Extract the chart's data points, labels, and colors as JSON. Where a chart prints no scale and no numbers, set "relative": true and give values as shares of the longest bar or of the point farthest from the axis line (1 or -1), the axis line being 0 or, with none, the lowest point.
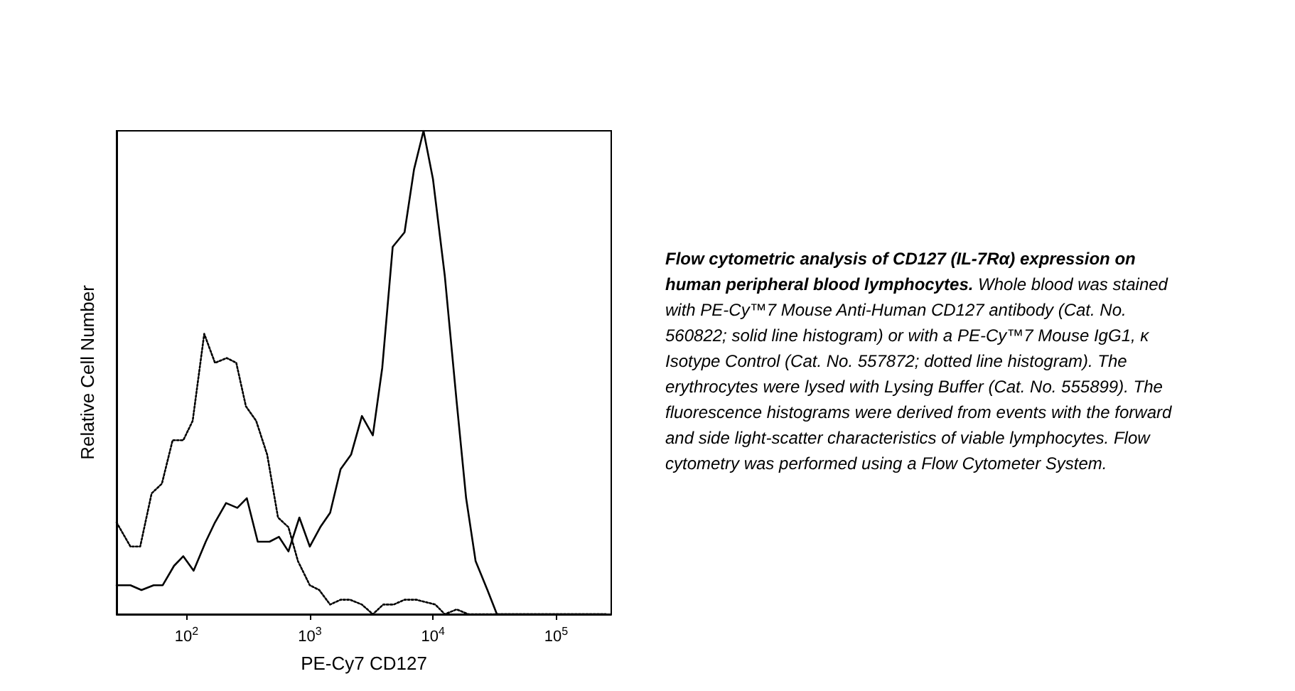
{
  "chart_data": {
    "type": "line",
    "xlabel": "PE-Cy7 CD127",
    "ylabel": "Relative Cell Number",
    "relative": true,
    "log": "x",
    "grid": false,
    "marker": "none",
    "xlim": [
      27,
      280000
    ],
    "xticks": [
      {
        "value": 100,
        "label": "10$^{2}$"
      },
      {
        "value": 1000,
        "label": "10$^{3}$"
      },
      {
        "value": 10000,
        "label": "10$^{4}$"
      },
      {
        "value": 100000,
        "label": "10$^{5}$"
      }
    ],
    "series": [
      {
        "color": "#000000",
        "line_style": "solid",
        "x": [
          27,
          35,
          43,
          54,
          64,
          79,
          94,
          114,
          143,
          170,
          209,
          258,
          308,
          378,
          471,
          562,
          671,
          823,
          1000,
          1216,
          1463,
          1778,
          2163,
          2649,
          3249,
          3875,
          4710,
          5878,
          7015,
          8380,
          10000,
          12470,
          15560,
          18580,
          22180,
          27680,
          33040,
          253500
        ],
        "values": [
          0.06,
          0.06,
          0.05,
          0.06,
          0.06,
          0.1,
          0.12,
          0.09,
          0.15,
          0.19,
          0.23,
          0.22,
          0.24,
          0.15,
          0.15,
          0.16,
          0.13,
          0.2,
          0.14,
          0.18,
          0.21,
          0.3,
          0.33,
          0.41,
          0.37,
          0.51,
          0.76,
          0.79,
          0.92,
          1.0,
          0.9,
          0.7,
          0.44,
          0.24,
          0.11,
          0.05,
          0,
          0
        ]
      },
      {
        "color": "#000000",
        "line_style": "dotted",
        "x": [
          27,
          35,
          42,
          52,
          63,
          77,
          94,
          112,
          139,
          170,
          212,
          253,
          303,
          367,
          451,
          552,
          671,
          801,
          1000,
          1194,
          1463,
          1778,
          2123,
          2649,
          3249,
          3945,
          4797,
          5878,
          7325,
          10450,
          12470,
          15560,
          19420,
          33040,
          253500
        ],
        "values": [
          0.19,
          0.14,
          0.14,
          0.25,
          0.27,
          0.36,
          0.36,
          0.4,
          0.58,
          0.52,
          0.53,
          0.52,
          0.43,
          0.4,
          0.33,
          0.2,
          0.18,
          0.11,
          0.06,
          0.05,
          0.02,
          0.03,
          0.03,
          0.02,
          0,
          0.02,
          0.02,
          0.03,
          0.03,
          0.02,
          0,
          0.01,
          0,
          0,
          0
        ]
      }
    ],
    "annotations": [
      "Flow cytometric analysis of CD127 (IL-7Rα) expression on human peripheral blood lymphocytes.",
      "Whole blood was stained with PE-Cy™7 Mouse Anti-Human CD127 antibody (Cat. No. 560822; solid line histogram) or with a PE-Cy™7 Mouse IgG1, κ Isotype Control (Cat. No. 557872; dotted line histogram). The erythrocytes were lysed with Lysing Buffer (Cat. No. 555899). The fluorescence histograms were derived from events with the forward and side light-scatter characteristics of viable lymphocytes. Flow cytometry was performed using a Flow Cytometer System."
    ]
  }
}
